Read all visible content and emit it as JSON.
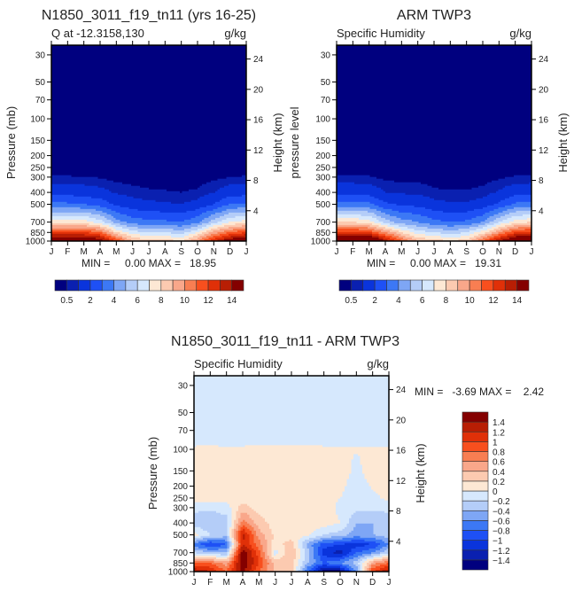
{
  "chart_data": [
    {
      "type": "heatmap",
      "subtype": "filled-contour",
      "title": "N1850_3011_f19_tn11 (yrs 16-25)",
      "subtitle_left": "Q at -12.3158,130",
      "subtitle_right": "g/kg",
      "ylabel": "Pressure (mb)",
      "ylabel_right": "Height (km)",
      "min_max_text": "MIN =     0.00 MAX =   18.95",
      "x_ticklabels": [
        "J",
        "F",
        "M",
        "A",
        "M",
        "J",
        "J",
        "A",
        "S",
        "O",
        "N",
        "D",
        "J"
      ],
      "y_ticks": [
        30,
        50,
        70,
        100,
        150,
        200,
        250,
        300,
        400,
        500,
        700,
        850,
        1000
      ],
      "y_right_ticks": [
        4,
        8,
        12,
        16,
        20,
        24
      ],
      "ylim": [
        25,
        1000
      ],
      "levels": [
        0.5,
        1,
        2,
        3,
        4,
        5,
        6,
        7,
        8,
        9,
        10,
        11,
        12,
        13,
        14
      ],
      "colorbar_labels": [
        "0.5",
        "2",
        "4",
        "6",
        "8",
        "10",
        "12",
        "14"
      ],
      "colors": [
        "#00007f",
        "#0a20b0",
        "#0a34dc",
        "#1e50f5",
        "#3c78f5",
        "#7ea6f5",
        "#b4cdf8",
        "#d6e8fd",
        "#fde8d4",
        "#fccab0",
        "#f9a78a",
        "#f87e52",
        "#f84f1e",
        "#e03008",
        "#b81e04",
        "#840000"
      ],
      "pressure": [
        1000,
        850,
        700,
        500,
        400,
        300,
        250,
        200,
        100,
        30
      ],
      "values": [
        [
          16,
          16,
          16,
          15,
          12,
          9,
          8.5,
          8.5,
          8,
          10,
          13,
          15,
          16
        ],
        [
          12,
          12,
          12,
          11,
          8,
          6.5,
          6,
          6,
          5.5,
          7,
          9.5,
          11,
          12
        ],
        [
          7.5,
          7.5,
          7.5,
          6.5,
          4.5,
          3.5,
          3.3,
          3.2,
          3,
          3.8,
          5.5,
          7,
          7.5
        ],
        [
          3.2,
          3.2,
          3,
          2.6,
          1.8,
          1.4,
          1.2,
          1.1,
          1.0,
          1.3,
          2,
          3,
          3.2
        ],
        [
          1.6,
          1.6,
          1.5,
          1.3,
          0.9,
          0.7,
          0.6,
          0.55,
          0.5,
          0.6,
          1.0,
          1.5,
          1.6
        ],
        [
          0.55,
          0.55,
          0.5,
          0.45,
          0.3,
          0.25,
          0.2,
          0.2,
          0.2,
          0.2,
          0.35,
          0.5,
          0.55
        ],
        [
          0.2,
          0.2,
          0.2,
          0.2,
          0.15,
          0.1,
          0.1,
          0.1,
          0.1,
          0.1,
          0.15,
          0.2,
          0.2
        ],
        [
          0.05,
          0.05,
          0.05,
          0.05,
          0.05,
          0.05,
          0.05,
          0.05,
          0.05,
          0.05,
          0.05,
          0.05,
          0.05
        ],
        [
          0,
          0,
          0,
          0,
          0,
          0,
          0,
          0,
          0,
          0,
          0,
          0,
          0
        ],
        [
          0,
          0,
          0,
          0,
          0,
          0,
          0,
          0,
          0,
          0,
          0,
          0,
          0
        ]
      ]
    },
    {
      "type": "heatmap",
      "subtype": "filled-contour",
      "title": "ARM TWP3",
      "subtitle_left": "Specific Humidity",
      "subtitle_right": "g/kg",
      "ylabel": "pressure level",
      "ylabel_right": "Height (km)",
      "min_max_text": "MIN =     0.00 MAX =   19.31",
      "x_ticklabels": [
        "J",
        "F",
        "M",
        "A",
        "M",
        "J",
        "J",
        "A",
        "S",
        "O",
        "N",
        "D",
        "J"
      ],
      "y_ticks": [
        30,
        50,
        70,
        100,
        150,
        200,
        250,
        300,
        400,
        500,
        700,
        850,
        1000
      ],
      "y_right_ticks": [
        4,
        8,
        12,
        16,
        20,
        24
      ],
      "ylim": [
        25,
        1000
      ],
      "levels": [
        0.5,
        1,
        2,
        3,
        4,
        5,
        6,
        7,
        8,
        9,
        10,
        11,
        12,
        13,
        14
      ],
      "colorbar_labels": [
        "0.5",
        "2",
        "4",
        "6",
        "8",
        "10",
        "12",
        "14"
      ],
      "colors": [
        "#00007f",
        "#0a20b0",
        "#0a34dc",
        "#1e50f5",
        "#3c78f5",
        "#7ea6f5",
        "#b4cdf8",
        "#d6e8fd",
        "#fde8d4",
        "#fccab0",
        "#f9a78a",
        "#f87e52",
        "#f84f1e",
        "#e03008",
        "#b81e04",
        "#840000"
      ],
      "pressure": [
        1000,
        850,
        700,
        500,
        400,
        300,
        250,
        200,
        100,
        30
      ],
      "values": [
        [
          17,
          17,
          17,
          14,
          11,
          9,
          8.5,
          8,
          8.5,
          11,
          14,
          16,
          17
        ],
        [
          12.5,
          12.5,
          12,
          10,
          8,
          6.5,
          6,
          5.5,
          6,
          7.5,
          10,
          12,
          12.5
        ],
        [
          8,
          8,
          7.5,
          5.5,
          4.5,
          4,
          3.3,
          3,
          3.2,
          4,
          6,
          7.5,
          8
        ],
        [
          3.3,
          3.3,
          3.2,
          2.2,
          1.8,
          1.7,
          1.3,
          1.1,
          1.1,
          1.4,
          2.2,
          3.2,
          3.3
        ],
        [
          1.7,
          1.7,
          1.6,
          1.0,
          0.9,
          0.85,
          0.6,
          0.55,
          0.55,
          0.7,
          1.1,
          1.6,
          1.7
        ],
        [
          0.55,
          0.55,
          0.55,
          0.35,
          0.3,
          0.3,
          0.25,
          0.2,
          0.2,
          0.25,
          0.4,
          0.55,
          0.55
        ],
        [
          0.2,
          0.2,
          0.2,
          0.15,
          0.15,
          0.15,
          0.1,
          0.1,
          0.1,
          0.1,
          0.15,
          0.2,
          0.2
        ],
        [
          0.05,
          0.05,
          0.05,
          0.05,
          0.05,
          0.05,
          0.05,
          0.05,
          0.05,
          0.05,
          0.05,
          0.05,
          0.05
        ],
        [
          0,
          0,
          0,
          0,
          0,
          0,
          0,
          0,
          0,
          0,
          0,
          0,
          0
        ],
        [
          0,
          0,
          0,
          0,
          0,
          0,
          0,
          0,
          0,
          0,
          0,
          0,
          0
        ]
      ]
    },
    {
      "type": "heatmap",
      "subtype": "filled-contour",
      "title": "N1850_3011_f19_tn11 - ARM TWP3",
      "subtitle_left": "Specific Humidity",
      "subtitle_right": "g/kg",
      "ylabel": "Pressure (mb)",
      "ylabel_right": "Height (km)",
      "min_max_text": "MIN =   -3.69 MAX =    2.42",
      "x_ticklabels": [
        "J",
        "F",
        "M",
        "A",
        "M",
        "J",
        "J",
        "A",
        "S",
        "O",
        "N",
        "D",
        "J"
      ],
      "y_ticks": [
        30,
        50,
        70,
        100,
        150,
        200,
        250,
        300,
        400,
        500,
        700,
        850,
        1000
      ],
      "y_right_ticks": [
        4,
        8,
        12,
        16,
        20,
        24
      ],
      "ylim": [
        25,
        1000
      ],
      "levels": [
        -1.4,
        -1.2,
        -1,
        -0.8,
        -0.6,
        -0.4,
        -0.2,
        0,
        0.2,
        0.4,
        0.6,
        0.8,
        1,
        1.2,
        1.4
      ],
      "colorbar_labels": [
        "-1.4",
        "-1.2",
        "-1",
        "-0.8",
        "-0.6",
        "-0.4",
        "-0.2",
        "0",
        "0.2",
        "0.4",
        "0.6",
        "0.8",
        "1",
        "1.2",
        "1.4"
      ],
      "colors": [
        "#00007f",
        "#0a20b0",
        "#0a34dc",
        "#1e50f5",
        "#3c78f5",
        "#7ea6f5",
        "#b4cdf8",
        "#d6e8fd",
        "#fde8d4",
        "#fccab0",
        "#f9a78a",
        "#f87e52",
        "#f84f1e",
        "#e03008",
        "#b81e04",
        "#840000"
      ],
      "pressure": [
        1000,
        850,
        700,
        600,
        500,
        400,
        300,
        250,
        200,
        150,
        100,
        70,
        50,
        30
      ],
      "values": [
        [
          1.4,
          1.2,
          0.8,
          1.5,
          0.8,
          0.4,
          0.3,
          -0.8,
          -1.6,
          -1.5,
          -0.6,
          1.0,
          1.4
        ],
        [
          0.8,
          0.8,
          0.5,
          1.6,
          1.0,
          0.3,
          0.3,
          -0.4,
          -0.8,
          -0.6,
          -0.3,
          0.5,
          0.8
        ],
        [
          -0.2,
          -0.4,
          -0.4,
          1.6,
          0.9,
          -0.1,
          0.4,
          -0.3,
          -1.1,
          -1.3,
          -0.8,
          -0.6,
          -0.2
        ],
        [
          -0.7,
          -1.0,
          -0.8,
          1.2,
          0.7,
          0.1,
          0.3,
          -0.5,
          -0.9,
          -1.0,
          -1.1,
          -1.0,
          -0.6
        ],
        [
          0.1,
          -0.2,
          -0.3,
          1.3,
          0.5,
          0.15,
          0.1,
          0.05,
          -0.2,
          -0.3,
          -0.5,
          -0.4,
          -0.3
        ],
        [
          -0.3,
          -0.4,
          -0.3,
          0.7,
          0.3,
          0.1,
          0.1,
          0.1,
          0.1,
          0.0,
          -0.4,
          -0.4,
          -0.3
        ],
        [
          -0.15,
          -0.15,
          -0.1,
          0.3,
          0.1,
          0.1,
          0.1,
          0.1,
          0.1,
          -0.05,
          -0.15,
          -0.15,
          -0.15
        ],
        [
          0.1,
          0.1,
          0.1,
          0.1,
          0.1,
          0.1,
          0.1,
          0.1,
          0.1,
          0.0,
          -0.1,
          -0.05,
          0.05
        ],
        [
          0.1,
          0.1,
          0.1,
          0.1,
          0.1,
          0.1,
          0.1,
          0.1,
          0.1,
          0.05,
          -0.1,
          0.02,
          0.1
        ],
        [
          0.1,
          0.1,
          0.1,
          0.1,
          0.1,
          0.1,
          0.1,
          0.1,
          0.1,
          0.1,
          -0.05,
          0.1,
          0.1
        ],
        [
          0.02,
          0.03,
          0.01,
          0.02,
          0.03,
          0.03,
          0.03,
          0.03,
          0.02,
          0.02,
          0.01,
          0.02,
          0.02
        ],
        [
          -0.1,
          -0.1,
          -0.1,
          -0.1,
          -0.1,
          -0.1,
          -0.1,
          -0.1,
          -0.1,
          -0.1,
          -0.1,
          -0.1,
          -0.1
        ],
        [
          -0.1,
          -0.1,
          -0.1,
          -0.1,
          -0.1,
          -0.1,
          -0.1,
          -0.1,
          -0.1,
          -0.1,
          -0.1,
          -0.1,
          -0.1
        ],
        [
          -0.1,
          -0.1,
          -0.1,
          -0.1,
          -0.1,
          -0.1,
          -0.1,
          -0.1,
          -0.1,
          -0.1,
          -0.1,
          -0.1,
          -0.1
        ]
      ]
    }
  ]
}
